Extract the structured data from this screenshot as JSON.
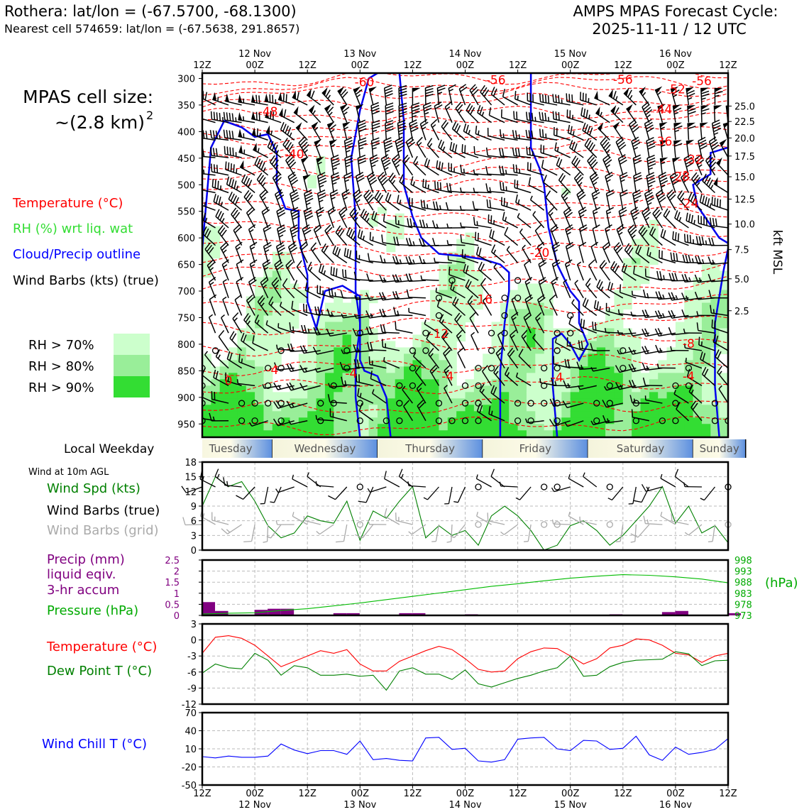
{
  "header": {
    "station": "Rothera: lat/lon = (-67.5700, -68.1300)",
    "cell": "Nearest cell 574659: lat/lon = (-67.5638, 291.8657)",
    "forecast_line1": "AMPS MPAS Forecast Cycle:",
    "forecast_line2": "2025-11-11 / 12 UTC"
  },
  "left_panel": {
    "cell_size_line1": "MPAS cell size:",
    "cell_size_line2": "~(2.8 km)",
    "cell_size_exp": "2",
    "legend": [
      {
        "label": "Temperature (°C)",
        "color": "#ff0000"
      },
      {
        "label": "RH (%) wrt liq. wat",
        "color": "#33dd33"
      },
      {
        "label": "Cloud/Precip outline",
        "color": "#0000ff"
      },
      {
        "label": "Wind Barbs (kts) (true)",
        "color": "#000000"
      }
    ],
    "rh_legend": [
      {
        "label": "RH > 70%",
        "color": "#ccffcc"
      },
      {
        "label": "RH > 80%",
        "color": "#99ee99"
      },
      {
        "label": "RH > 90%",
        "color": "#33dd33"
      }
    ],
    "weekday_label": "Local Weekday",
    "wind10_title": "Wind at 10m AGL",
    "wind10_legend": [
      {
        "label": "Wind Spd (kts)",
        "color": "#008000"
      },
      {
        "label": "Wind Barbs (true)",
        "color": "#000000"
      },
      {
        "label": "Wind Barbs (grid)",
        "color": "#aaaaaa"
      }
    ],
    "precip_legend": [
      {
        "label": "Precip (mm)",
        "color": "#800080"
      },
      {
        "label": "liquid eqiv.",
        "color": "#800080"
      },
      {
        "label": "3-hr accum",
        "color": "#800080"
      },
      {
        "label": "Pressure (hPa)",
        "color": "#00aa00"
      }
    ],
    "temp_legend": [
      {
        "label": "Temperature (°C)",
        "color": "#ff0000"
      },
      {
        "label": "Dew Point T (°C)",
        "color": "#008000"
      }
    ],
    "chill_legend": {
      "label": "Wind Chill T (°C)",
      "color": "#0000ff"
    }
  },
  "time_axis": {
    "ticks": [
      {
        "hour": 0,
        "label": "12Z",
        "date": ""
      },
      {
        "hour": 12,
        "label": "00Z",
        "date": "12 Nov"
      },
      {
        "hour": 24,
        "label": "12Z",
        "date": ""
      },
      {
        "hour": 36,
        "label": "00Z",
        "date": "13 Nov"
      },
      {
        "hour": 48,
        "label": "12Z",
        "date": ""
      },
      {
        "hour": 60,
        "label": "00Z",
        "date": "14 Nov"
      },
      {
        "hour": 72,
        "label": "12Z",
        "date": ""
      },
      {
        "hour": 84,
        "label": "00Z",
        "date": "15 Nov"
      },
      {
        "hour": 96,
        "label": "12Z",
        "date": ""
      },
      {
        "hour": 108,
        "label": "00Z",
        "date": "16 Nov"
      },
      {
        "hour": 120,
        "label": "12Z",
        "date": ""
      }
    ]
  },
  "weekdays": [
    {
      "label": "Tuesday",
      "start": -3,
      "end": 16
    },
    {
      "label": "Wednesday",
      "start": 16,
      "end": 40
    },
    {
      "label": "Thursday",
      "start": 40,
      "end": 64
    },
    {
      "label": "Friday",
      "start": 64,
      "end": 88
    },
    {
      "label": "Saturday",
      "start": 88,
      "end": 112
    },
    {
      "label": "Sunday",
      "start": 112,
      "end": 124
    }
  ],
  "chart_data": [
    {
      "type": "heatmap",
      "panel": "vertical-profile",
      "ylabel_right": "kft MSL",
      "y_ticks_left": [
        300,
        350,
        400,
        450,
        500,
        550,
        600,
        650,
        700,
        750,
        800,
        850,
        900,
        950
      ],
      "y_ticks_right": [
        {
          "label": "25.0",
          "p": 352
        },
        {
          "label": "22.5",
          "p": 381
        },
        {
          "label": "20.0",
          "p": 412
        },
        {
          "label": "17.5",
          "p": 446
        },
        {
          "label": "15.0",
          "p": 485
        },
        {
          "label": "12.5",
          "p": 527
        },
        {
          "label": "10.0",
          "p": 574
        },
        {
          "label": "7.5",
          "p": 622
        },
        {
          "label": "5.0",
          "p": 677
        },
        {
          "label": "2.5",
          "p": 737
        }
      ],
      "ylim": [
        290,
        975
      ],
      "xlim": [
        0,
        120
      ],
      "temperature_labels": [
        {
          "t": 37,
          "p": 307,
          "label": "-60"
        },
        {
          "t": 67,
          "p": 303,
          "label": "-56"
        },
        {
          "t": 96,
          "p": 302,
          "label": "-56"
        },
        {
          "t": 114,
          "p": 305,
          "label": "-56"
        },
        {
          "t": 108,
          "p": 320,
          "label": "-52"
        },
        {
          "t": 15,
          "p": 362,
          "label": "-48"
        },
        {
          "t": 105,
          "p": 358,
          "label": "-44"
        },
        {
          "t": 21,
          "p": 442,
          "label": "-40"
        },
        {
          "t": 105,
          "p": 418,
          "label": "-36"
        },
        {
          "t": 112,
          "p": 452,
          "label": "-32"
        },
        {
          "t": 109,
          "p": 484,
          "label": "-28"
        },
        {
          "t": 111,
          "p": 535,
          "label": "-24"
        },
        {
          "t": 77,
          "p": 628,
          "label": "-20"
        },
        {
          "t": 64,
          "p": 715,
          "label": "-16"
        },
        {
          "t": 54,
          "p": 780,
          "label": "-12"
        },
        {
          "t": 111,
          "p": 799,
          "label": "-8"
        },
        {
          "t": 16,
          "p": 848,
          "label": "-4"
        },
        {
          "t": 56,
          "p": 860,
          "label": "-4"
        },
        {
          "t": 111,
          "p": 860,
          "label": "-4"
        },
        {
          "t": 34,
          "p": 855,
          "label": "-4"
        },
        {
          "t": 81,
          "p": 862,
          "label": "-4"
        },
        {
          "t": 6,
          "p": 868,
          "label": "0"
        }
      ]
    },
    {
      "type": "line",
      "panel": "wind10",
      "x": [
        0,
        3,
        6,
        9,
        12,
        15,
        18,
        21,
        24,
        27,
        30,
        33,
        36,
        39,
        42,
        45,
        48,
        51,
        54,
        57,
        60,
        63,
        66,
        69,
        72,
        75,
        78,
        81,
        84,
        87,
        90,
        93,
        96,
        99,
        102,
        105,
        108,
        111,
        114,
        117,
        120
      ],
      "series": [
        {
          "values": [
            9,
            15,
            13,
            14,
            10,
            5,
            2.5,
            3.5,
            7,
            6,
            5.5,
            10,
            2,
            8,
            6.5,
            10,
            13,
            2.5,
            5,
            3,
            4,
            1,
            7,
            9,
            7,
            4,
            0,
            1,
            5,
            6,
            4,
            1,
            3,
            6,
            9,
            13,
            5.5,
            9,
            3.5,
            5,
            1.5
          ],
          "color": "#008000"
        }
      ],
      "ylim": [
        0,
        18
      ],
      "y_ticks": [
        0,
        3,
        6,
        9,
        12,
        15,
        18
      ]
    },
    {
      "type": "bar",
      "panel": "precip-pressure",
      "precip_x": [
        0,
        3,
        12,
        15,
        18,
        30,
        33,
        45,
        48,
        60,
        93,
        105,
        108,
        120
      ],
      "precip_values": [
        0.6,
        0.2,
        0.25,
        0.3,
        0.3,
        0.1,
        0.1,
        0.1,
        0.1,
        0.05,
        0.05,
        0.15,
        0.2,
        0.1
      ],
      "ylim": [
        0,
        2.5
      ],
      "y_ticks_left": [
        0,
        0.5,
        1.0,
        1.5,
        2.0,
        2.5
      ],
      "pressure_x": [
        0,
        6,
        12,
        18,
        24,
        30,
        36,
        42,
        48,
        54,
        60,
        66,
        72,
        78,
        84,
        90,
        96,
        102,
        108,
        114,
        120
      ],
      "pressure_values": [
        973.6,
        974,
        974.2,
        975.2,
        976,
        977.3,
        978.6,
        980.1,
        981.6,
        983.1,
        984.6,
        986.1,
        987.3,
        988.6,
        989.8,
        990.7,
        991.4,
        991.1,
        990.4,
        989.4,
        987.7
      ],
      "pressure_ylim": [
        973,
        998
      ],
      "y_ticks_right": [
        973,
        978,
        983,
        988,
        993,
        998
      ],
      "ylabel_right": "(hPa)"
    },
    {
      "type": "line",
      "panel": "temperature",
      "x": [
        0,
        3,
        6,
        9,
        12,
        15,
        18,
        21,
        24,
        27,
        30,
        33,
        36,
        39,
        42,
        45,
        48,
        51,
        54,
        57,
        60,
        63,
        66,
        69,
        72,
        75,
        78,
        81,
        84,
        87,
        90,
        93,
        96,
        99,
        102,
        105,
        108,
        111,
        114,
        117,
        120
      ],
      "series": [
        {
          "values": [
            -2.5,
            0.5,
            0.8,
            0.3,
            -1,
            -3,
            -5,
            -4,
            -3,
            -2,
            -2.5,
            -1.8,
            -4.5,
            -5.8,
            -5.8,
            -4,
            -3,
            -2,
            -1.2,
            -1.8,
            -3.5,
            -5.5,
            -6,
            -5.8,
            -3.5,
            -2.2,
            -1.5,
            -1.6,
            -3,
            -4.5,
            -3.5,
            -1.5,
            -1,
            0.2,
            0,
            -1,
            -2.5,
            -2.8,
            -4.2,
            -3,
            -2.5
          ],
          "color": "#ff0000"
        },
        {
          "values": [
            -6.2,
            -4.5,
            -5.2,
            -5.4,
            -2.5,
            -3.8,
            -6.6,
            -4.8,
            -5.2,
            -6.6,
            -6.6,
            -6.4,
            -6.8,
            -6.6,
            -9.4,
            -5.8,
            -5.2,
            -6.4,
            -6.4,
            -7.4,
            -5.6,
            -8.2,
            -8.8,
            -8,
            -7.2,
            -6.6,
            -5.8,
            -5.2,
            -3,
            -6.8,
            -6.6,
            -5,
            -4.2,
            -3.8,
            -3.7,
            -3.6,
            -2.2,
            -2.6,
            -4.8,
            -3.9,
            -3.8
          ],
          "color": "#008000"
        }
      ],
      "ylim": [
        -12,
        3
      ],
      "y_ticks": [
        -12,
        -9,
        -6,
        -3,
        0,
        3
      ]
    },
    {
      "type": "line",
      "panel": "wind-chill",
      "x": [
        0,
        3,
        6,
        9,
        12,
        15,
        18,
        21,
        24,
        27,
        30,
        33,
        36,
        39,
        42,
        45,
        48,
        51,
        54,
        57,
        60,
        63,
        66,
        69,
        72,
        75,
        78,
        81,
        84,
        87,
        90,
        93,
        96,
        99,
        102,
        105,
        108,
        111,
        114,
        117,
        120
      ],
      "series": [
        {
          "values": [
            -3,
            -5,
            -2,
            -4,
            -4,
            -2,
            18,
            8,
            2,
            7,
            7,
            1,
            23,
            -8,
            -6,
            -9,
            -10,
            28,
            29,
            9,
            11,
            -10,
            -12,
            -8,
            26,
            28,
            29,
            10,
            7,
            24,
            23,
            9,
            11,
            31,
            0,
            -9,
            13,
            1,
            4,
            9,
            27
          ],
          "color": "#0000ff"
        }
      ],
      "ylim": [
        -50,
        70
      ],
      "y_ticks": [
        -50,
        -20,
        10,
        40,
        70
      ]
    }
  ]
}
